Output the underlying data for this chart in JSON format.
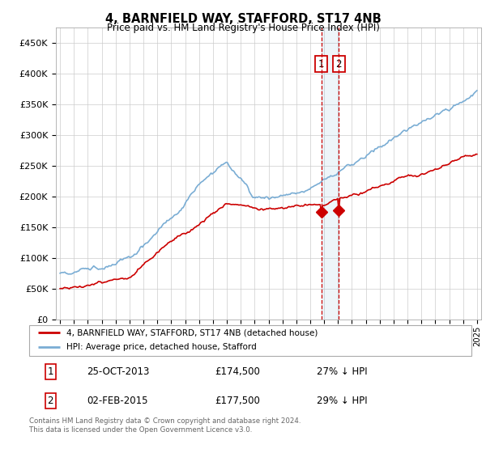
{
  "title": "4, BARNFIELD WAY, STAFFORD, ST17 4NB",
  "subtitle": "Price paid vs. HM Land Registry's House Price Index (HPI)",
  "ylim": [
    0,
    475000
  ],
  "yticks": [
    0,
    50000,
    100000,
    150000,
    200000,
    250000,
    300000,
    350000,
    400000,
    450000
  ],
  "ytick_labels": [
    "£0",
    "£50K",
    "£100K",
    "£150K",
    "£200K",
    "£250K",
    "£300K",
    "£350K",
    "£400K",
    "£450K"
  ],
  "hpi_color": "#7aadd4",
  "price_color": "#cc0000",
  "marker1_year": 2013.82,
  "marker2_year": 2015.09,
  "marker1_price": 174500,
  "marker2_price": 177500,
  "legend_label_price": "4, BARNFIELD WAY, STAFFORD, ST17 4NB (detached house)",
  "legend_label_hpi": "HPI: Average price, detached house, Stafford",
  "sale1_label": "25-OCT-2013",
  "sale1_price": "£174,500",
  "sale1_pct": "27% ↓ HPI",
  "sale2_label": "02-FEB-2015",
  "sale2_price": "£177,500",
  "sale2_pct": "29% ↓ HPI",
  "footer": "Contains HM Land Registry data © Crown copyright and database right 2024.\nThis data is licensed under the Open Government Licence v3.0.",
  "background_color": "#ffffff",
  "grid_color": "#cccccc",
  "xmin": 1995,
  "xmax": 2025
}
